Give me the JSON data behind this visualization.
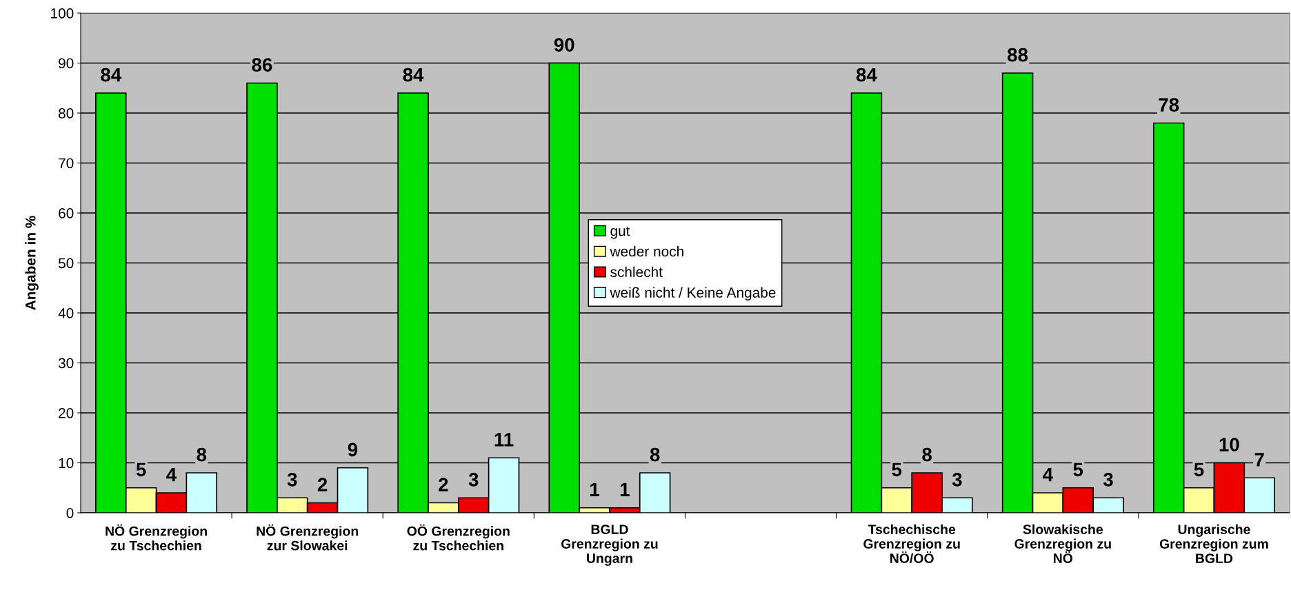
{
  "chart_data": {
    "type": "bar",
    "ylabel": "Angaben in %",
    "categories": [
      "NÖ Grenzregion\nzu Tschechien",
      "NÖ Grenzregion\nzur Slowakei",
      "OÖ Grenzregion\nzu Tschechien",
      "BGLD\nGrenzregion zu\nUngarn",
      null,
      "Tschechische\nGrenzregion zu\nNÖ/OÖ",
      "Slowakische\nGrenzregion zu\nNÖ",
      "Ungarische\nGrenzregion zum\nBGLD"
    ],
    "series": [
      {
        "name": "gut",
        "color": "#00e000",
        "values": [
          84,
          86,
          84,
          90,
          null,
          84,
          88,
          78
        ]
      },
      {
        "name": "weder noch",
        "color": "#ffff99",
        "values": [
          5,
          3,
          2,
          1,
          null,
          5,
          4,
          5
        ]
      },
      {
        "name": "schlecht",
        "color": "#ee0000",
        "values": [
          4,
          2,
          3,
          1,
          null,
          8,
          5,
          10
        ]
      },
      {
        "name": "weiß nicht / Keine Angabe",
        "color": "#ccffff",
        "values": [
          8,
          9,
          11,
          8,
          null,
          3,
          3,
          7
        ]
      }
    ],
    "ylim": [
      0,
      100
    ],
    "yticks": [
      0,
      10,
      20,
      30,
      40,
      50,
      60,
      70,
      80,
      90,
      100
    ],
    "grid": "y",
    "legend": "center",
    "data_labels": true
  }
}
